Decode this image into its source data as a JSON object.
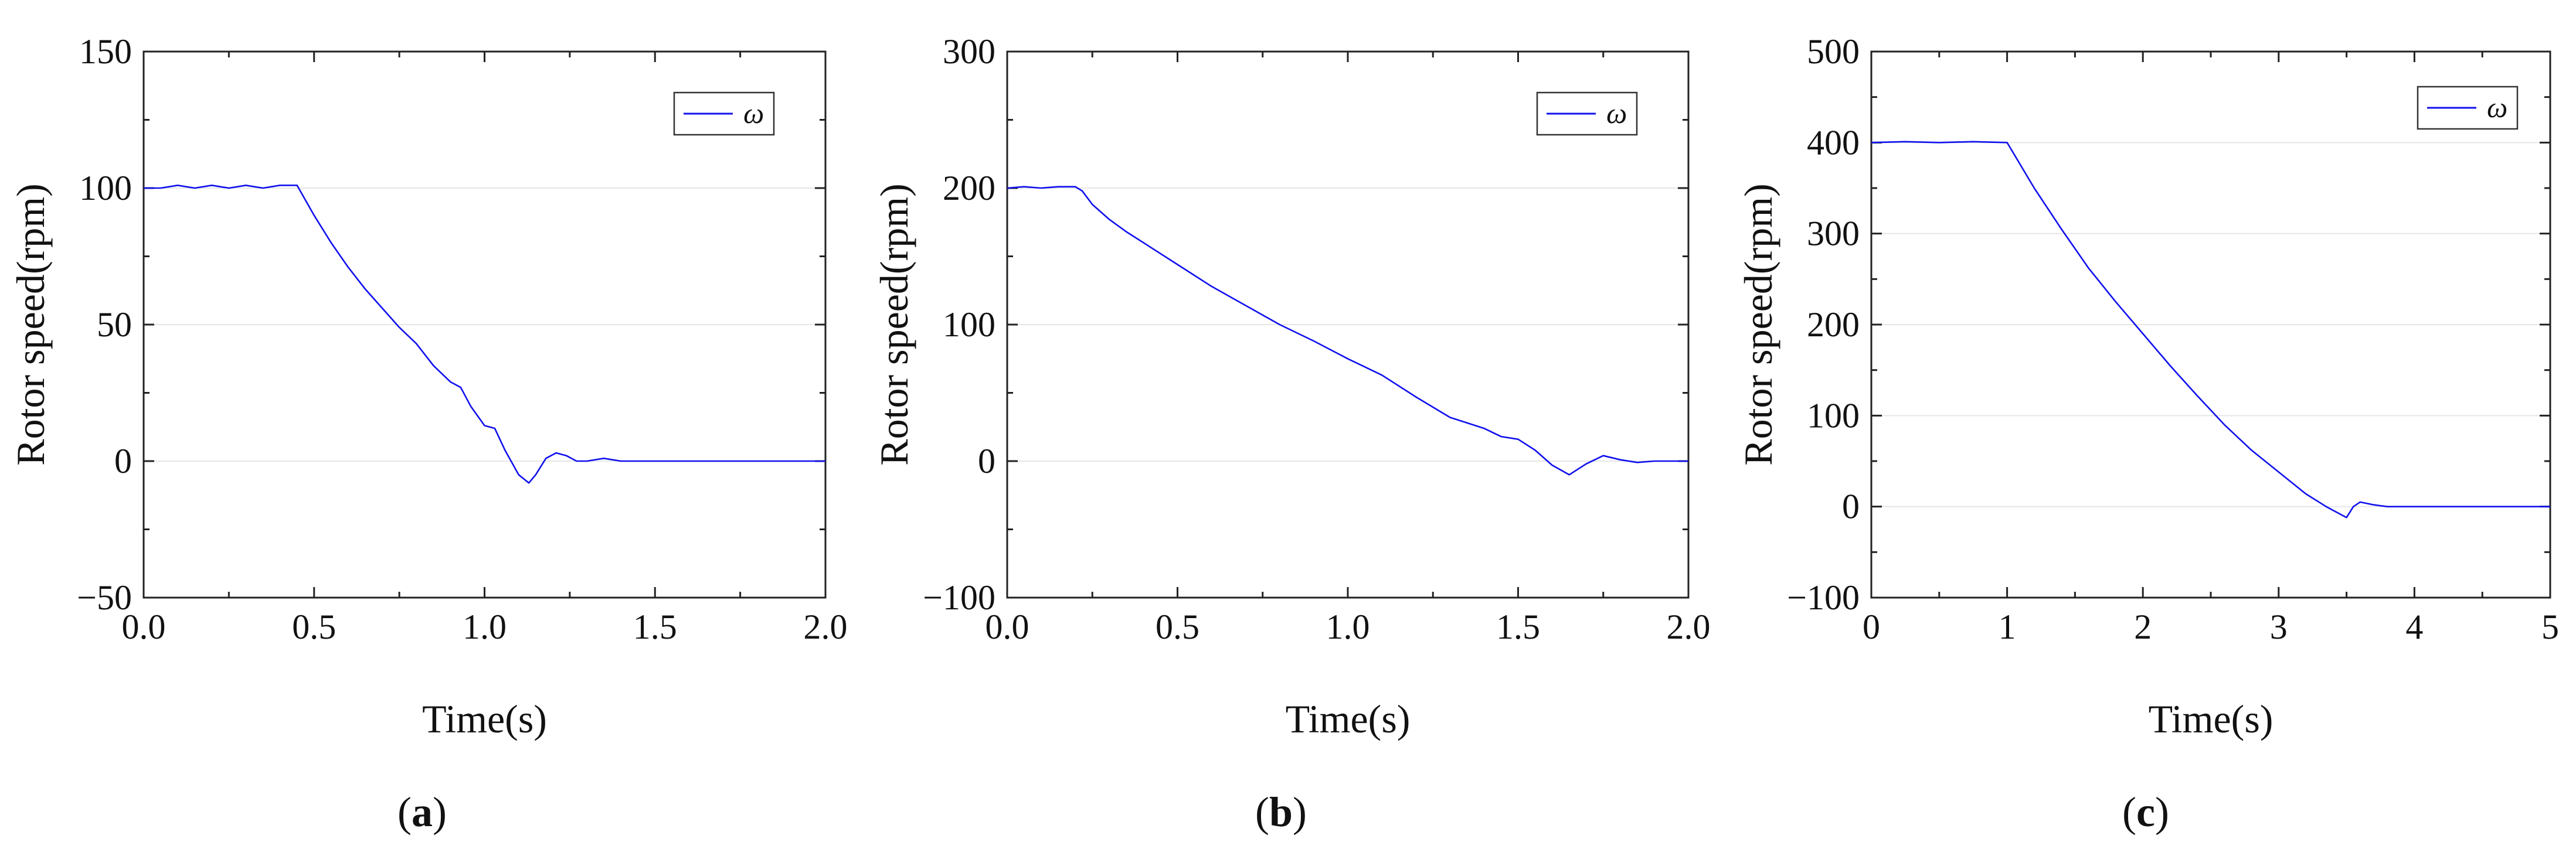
{
  "figure": {
    "panels": [
      {
        "id": "a",
        "label": "(a)",
        "letter": "a"
      },
      {
        "id": "b",
        "label": "(b)",
        "letter": "b"
      },
      {
        "id": "c",
        "label": "(c)",
        "letter": "c"
      }
    ]
  },
  "colors": {
    "series": "#1010ee",
    "axis": "#222222",
    "grid": "#e6e6e6"
  },
  "chart_data": [
    {
      "type": "line",
      "panel": "a",
      "title": "",
      "xlabel": "Time(s)",
      "ylabel": "Rotor speed(rpm)",
      "xlim": [
        0,
        2.0
      ],
      "ylim": [
        -50,
        150
      ],
      "xticks": [
        0.0,
        0.5,
        1.0,
        1.5,
        2.0
      ],
      "xtick_labels": [
        "0.0",
        "0.5",
        "1.0",
        "1.5",
        "2.0"
      ],
      "yticks": [
        -50,
        0,
        50,
        100,
        150
      ],
      "ytick_labels": [
        "−50",
        "0",
        "50",
        "100",
        "150"
      ],
      "grid": true,
      "legend": {
        "entries": [
          "ω"
        ],
        "placement": "top-right"
      },
      "series": [
        {
          "name": "ω",
          "x": [
            0,
            0.05,
            0.1,
            0.15,
            0.2,
            0.25,
            0.3,
            0.35,
            0.4,
            0.45,
            0.5,
            0.55,
            0.6,
            0.65,
            0.7,
            0.75,
            0.8,
            0.85,
            0.9,
            0.93,
            0.96,
            1.0,
            1.03,
            1.06,
            1.1,
            1.13,
            1.15,
            1.18,
            1.21,
            1.24,
            1.27,
            1.3,
            1.35,
            1.4,
            1.45,
            1.5,
            1.6,
            1.8,
            2.0
          ],
          "values": [
            100,
            100,
            101,
            100,
            101,
            100,
            101,
            100,
            101,
            101,
            90,
            80,
            71,
            63,
            56,
            49,
            43,
            35,
            29,
            27,
            20,
            13,
            12,
            4,
            -5,
            -8,
            -5,
            1,
            3,
            2,
            0,
            0,
            1,
            0,
            0,
            0,
            0,
            0,
            0
          ]
        }
      ]
    },
    {
      "type": "line",
      "panel": "b",
      "title": "",
      "xlabel": "Time(s)",
      "ylabel": "Rotor speed(rpm)",
      "xlim": [
        0,
        2.0
      ],
      "ylim": [
        -100,
        300
      ],
      "xticks": [
        0.0,
        0.5,
        1.0,
        1.5,
        2.0
      ],
      "xtick_labels": [
        "0.0",
        "0.5",
        "1.0",
        "1.5",
        "2.0"
      ],
      "yticks": [
        -100,
        0,
        100,
        200,
        300
      ],
      "ytick_labels": [
        "−100",
        "0",
        "100",
        "200",
        "300"
      ],
      "grid": true,
      "legend": {
        "entries": [
          "ω"
        ],
        "placement": "top-right"
      },
      "series": [
        {
          "name": "ω",
          "x": [
            0,
            0.05,
            0.1,
            0.15,
            0.2,
            0.22,
            0.25,
            0.3,
            0.35,
            0.4,
            0.5,
            0.6,
            0.7,
            0.8,
            0.9,
            1.0,
            1.1,
            1.2,
            1.3,
            1.4,
            1.45,
            1.5,
            1.55,
            1.6,
            1.65,
            1.7,
            1.75,
            1.8,
            1.85,
            1.9,
            1.95,
            2.0
          ],
          "values": [
            200,
            201,
            200,
            201,
            201,
            198,
            188,
            177,
            168,
            160,
            144,
            128,
            114,
            100,
            88,
            75,
            63,
            47,
            32,
            24,
            18,
            16,
            8,
            -3,
            -10,
            -2,
            4,
            1,
            -1,
            0,
            0,
            0
          ]
        }
      ]
    },
    {
      "type": "line",
      "panel": "c",
      "title": "",
      "xlabel": "Time(s)",
      "ylabel": "Rotor speed(rpm)",
      "xlim": [
        0,
        5
      ],
      "ylim": [
        -100,
        500
      ],
      "xticks": [
        0,
        1,
        2,
        3,
        4,
        5
      ],
      "xtick_labels": [
        "0",
        "1",
        "2",
        "3",
        "4",
        "5"
      ],
      "yticks": [
        -100,
        0,
        100,
        200,
        300,
        400,
        500
      ],
      "ytick_labels": [
        "−100",
        "0",
        "100",
        "200",
        "300",
        "400",
        "500"
      ],
      "grid": true,
      "legend": {
        "entries": [
          "ω"
        ],
        "placement": "top-right"
      },
      "series": [
        {
          "name": "ω",
          "x": [
            0,
            0.25,
            0.5,
            0.75,
            1.0,
            1.2,
            1.4,
            1.6,
            1.8,
            2.0,
            2.2,
            2.4,
            2.6,
            2.8,
            3.0,
            3.2,
            3.35,
            3.45,
            3.5,
            3.55,
            3.6,
            3.7,
            3.8,
            4.0,
            4.5,
            5.0
          ],
          "values": [
            400,
            401,
            400,
            401,
            400,
            350,
            305,
            262,
            225,
            190,
            155,
            122,
            90,
            62,
            38,
            14,
            0,
            -8,
            -12,
            0,
            5,
            2,
            0,
            0,
            0,
            0
          ]
        }
      ]
    }
  ]
}
